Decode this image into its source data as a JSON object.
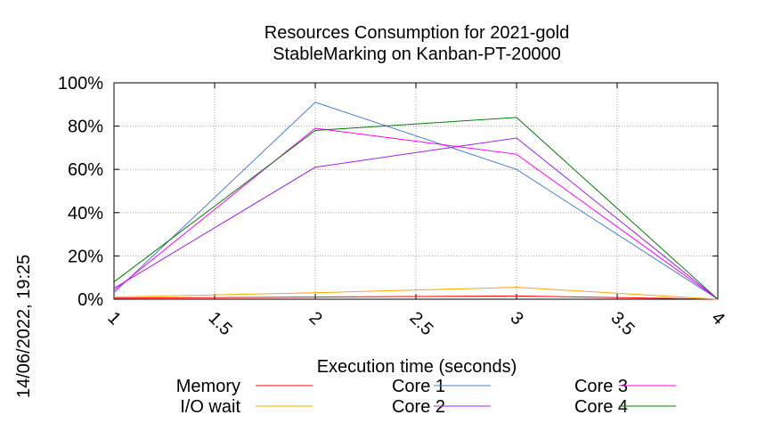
{
  "chart_data": {
    "type": "line",
    "title_line1": "Resources Consumption for 2021-gold",
    "title_line2": "StableMarking on Kanban-PT-20000",
    "xlabel": "Execution time (seconds)",
    "ylabel": "",
    "side_label": "14/06/2022, 19:25",
    "xlim": [
      1,
      4
    ],
    "ylim": [
      0,
      100
    ],
    "x_ticks": [
      "1",
      "1.5",
      "2",
      "2.5",
      "3",
      "3.5",
      "4"
    ],
    "y_ticks": [
      "0%",
      "20%",
      "40%",
      "60%",
      "80%",
      "100%"
    ],
    "grid": true,
    "legend_position": "bottom",
    "x": [
      1,
      2,
      3,
      4
    ],
    "series": [
      {
        "name": "Memory",
        "color": "#ff0000",
        "values": [
          0.5,
          1,
          1.5,
          0
        ]
      },
      {
        "name": "I/O wait",
        "color": "#ffa500",
        "values": [
          1,
          3,
          5.5,
          0
        ]
      },
      {
        "name": "Core 1",
        "color": "#4a7fd8",
        "values": [
          3,
          91,
          60,
          0
        ]
      },
      {
        "name": "Core 2",
        "color": "#a020f0",
        "values": [
          5,
          61,
          74.5,
          0
        ]
      },
      {
        "name": "Core 3",
        "color": "#ff00ff",
        "values": [
          4,
          79,
          67,
          0
        ]
      },
      {
        "name": "Core 4",
        "color": "#008000",
        "values": [
          8,
          78,
          84,
          0
        ]
      }
    ]
  }
}
